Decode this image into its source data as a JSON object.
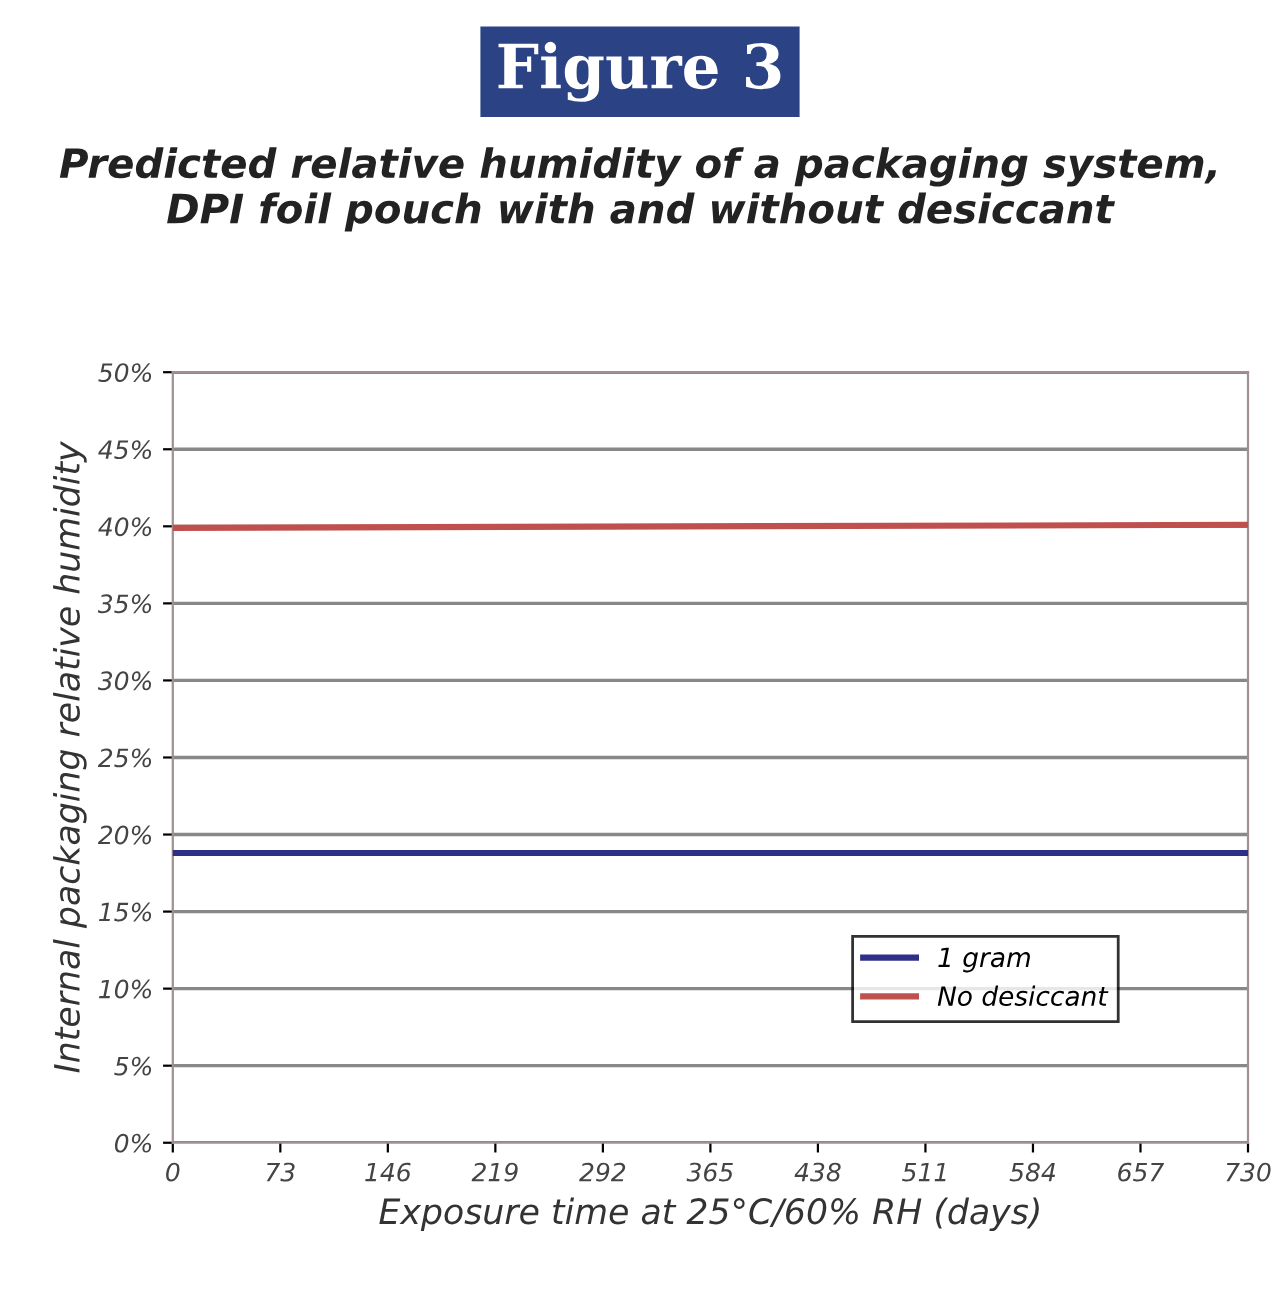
{
  "chart_data": {
    "type": "line",
    "title": "Figure 3",
    "subtitle": "Predicted relative humidity of a packaging system,\nDPI foil pouch with and without desiccant",
    "xlabel": "Exposure time at 25°C/60% RH (days)",
    "ylabel": "Internal packaging relative humidity",
    "x": [
      0,
      730
    ],
    "series": [
      {
        "name": "1 gram",
        "color": "#2e2f86",
        "values": [
          18.8,
          18.8
        ]
      },
      {
        "name": "No desiccant",
        "color": "#c0504d",
        "values": [
          39.9,
          40.1
        ]
      }
    ],
    "xlim": [
      0,
      730
    ],
    "xticks": [
      0,
      73,
      146,
      219,
      292,
      365,
      438,
      511,
      584,
      657,
      730
    ],
    "ylim": [
      0,
      50
    ],
    "yticks": [
      {
        "value": 0,
        "label": "0%"
      },
      {
        "value": 5,
        "label": "5%"
      },
      {
        "value": 10,
        "label": "10%"
      },
      {
        "value": 15,
        "label": "15%"
      },
      {
        "value": 20,
        "label": "20%"
      },
      {
        "value": 25,
        "label": "25%"
      },
      {
        "value": 30,
        "label": "30%"
      },
      {
        "value": 35,
        "label": "35%"
      },
      {
        "value": 40,
        "label": "40%"
      },
      {
        "value": 45,
        "label": "45%"
      },
      {
        "value": 50,
        "label": "50%"
      }
    ],
    "grid": "y",
    "legend": "bottom right",
    "marker": "none",
    "line_style": "solid"
  }
}
